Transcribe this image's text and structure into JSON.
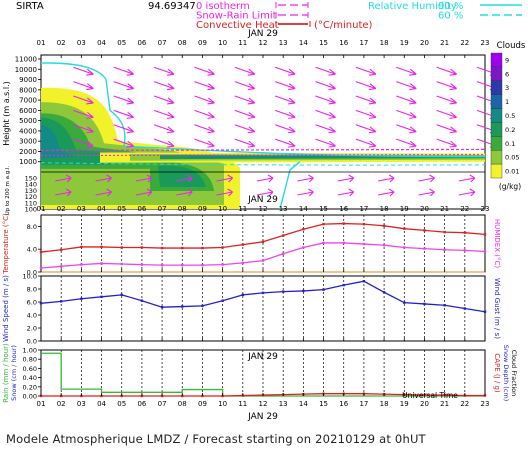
{
  "header": {
    "site": "SIRTA",
    "coords": "94.69347",
    "legend_isotherm": "0 isotherm",
    "legend_snow_rain": "Snow-Rain Limit",
    "legend_convective": "Convective Heat",
    "legend_convective_unit": "(°C/minute)",
    "legend_rh_label": "Relative Humidity",
    "legend_rh_90": "90 %",
    "legend_rh_60": "60 %"
  },
  "hour_labels": [
    "01",
    "02",
    "03",
    "04",
    "05",
    "06",
    "07",
    "08",
    "09",
    "10",
    "11",
    "12",
    "13",
    "14",
    "15",
    "16",
    "17",
    "18",
    "19",
    "20",
    "21",
    "22",
    "23"
  ],
  "date_label": "JAN 29",
  "x_axis_title": "Universal Time",
  "footer": "Modele Atmospherique LMDZ / Forecast starting on 20210129 at 0hUT",
  "colors": {
    "magenta": "#ee22ee",
    "cyan": "#22dddd",
    "red": "#dd2222",
    "blue": "#2222cc",
    "green": "#33bb33",
    "orange": "#e08a20"
  },
  "chart_data": [
    {
      "type": "heatmap",
      "panel": "clouds",
      "ylabel": "Height (m a.s.l.)",
      "ylabel2": "Up to 200 m a.g.l.",
      "y_ticks_upper": [
        11000,
        10000,
        9000,
        8000,
        7000,
        6000,
        5000,
        4000,
        3000,
        2000,
        1000
      ],
      "y_ticks_lower": [
        150,
        140,
        130,
        120,
        110,
        100
      ],
      "colorbar_title": "Clouds",
      "colorbar_unit": "(g/kg)",
      "colorbar_ticks": [
        "9",
        "6",
        "3",
        "1",
        "0.5",
        "0.2",
        "0.1",
        "0.05",
        "0.01"
      ],
      "colorbar_colors": [
        "#a000f0",
        "#7a18c8",
        "#2a3aa8",
        "#1868a8",
        "#128a86",
        "#1a9a5a",
        "#3aaa3a",
        "#8cc83a",
        "#f2f22a"
      ],
      "wind_arrow_direction": "from north-west"
    },
    {
      "type": "line",
      "panel": "temperature",
      "ylabel": "Temperature (°C)",
      "ylabel2": "HUMIDEX (°C)",
      "y_ticks": [
        "8.0",
        "4.0",
        "0.0"
      ],
      "ylim": [
        0,
        10
      ],
      "x": [
        1,
        2,
        3,
        4,
        5,
        6,
        7,
        8,
        9,
        10,
        11,
        12,
        13,
        14,
        15,
        16,
        17,
        18,
        19,
        20,
        21,
        22,
        23
      ],
      "series": [
        {
          "name": "Temperature",
          "color": "#dd2222",
          "values": [
            3.5,
            3.9,
            4.4,
            4.4,
            4.3,
            4.3,
            4.2,
            4.2,
            4.2,
            4.3,
            4.8,
            5.3,
            6.4,
            7.5,
            8.4,
            8.5,
            8.4,
            8.1,
            7.6,
            7.3,
            7.0,
            6.9,
            6.6
          ]
        },
        {
          "name": "HUMIDEX",
          "color": "#ee44ee",
          "values": [
            0.7,
            1.0,
            1.3,
            1.5,
            1.4,
            1.3,
            1.2,
            1.2,
            1.2,
            1.3,
            1.6,
            2.0,
            3.2,
            4.3,
            5.1,
            5.1,
            4.9,
            4.7,
            4.3,
            4.1,
            3.9,
            3.8,
            3.6
          ]
        }
      ],
      "zero_line_color": "#e08a20"
    },
    {
      "type": "line",
      "panel": "wind",
      "ylabel": "Wind Speed (m / s)",
      "ylabel2": "Wind Gust (m / s)",
      "y_ticks": [
        "10.0",
        "8.0",
        "6.0",
        "4.0",
        "2.0",
        "0.0"
      ],
      "ylim": [
        0,
        10
      ],
      "x": [
        1,
        2,
        3,
        4,
        5,
        6,
        7,
        8,
        9,
        10,
        11,
        12,
        13,
        14,
        15,
        16,
        17,
        18,
        19,
        20,
        21,
        22,
        23
      ],
      "series": [
        {
          "name": "Wind Speed",
          "color": "#2222cc",
          "values": [
            5.8,
            6.1,
            6.5,
            6.8,
            7.1,
            6.2,
            5.2,
            5.3,
            5.4,
            6.2,
            7.1,
            7.4,
            7.6,
            7.7,
            7.9,
            8.6,
            9.2,
            7.5,
            5.9,
            5.7,
            5.5,
            5.0,
            4.5
          ]
        }
      ]
    },
    {
      "type": "line",
      "panel": "precipitation",
      "ylabel": "Rain (mm / hour)",
      "ylabel_snow": "Snow (cm / hour)",
      "ylabel2": "CAPE (J / g)",
      "ylabel3": "Snow Depth (cm)",
      "ylabel4": "Cloud Fraction",
      "y_ticks": [
        "1.00",
        "0.80",
        "0.60",
        "0.40",
        "0.20",
        "0.00"
      ],
      "ylim": [
        0,
        1
      ],
      "x": [
        1,
        2,
        3,
        4,
        5,
        6,
        7,
        8,
        9,
        10,
        11,
        12,
        13,
        14,
        15,
        16,
        17,
        18,
        19,
        20,
        21,
        22,
        23
      ],
      "series": [
        {
          "name": "Rain",
          "color": "#33bb33",
          "type": "step",
          "values": [
            0.93,
            0.15,
            0.15,
            0.08,
            0.08,
            0.08,
            0.08,
            0.14,
            0.14,
            0.0,
            0.0,
            0.0,
            0.0,
            0.0,
            0.0,
            0.0,
            0.0,
            0.0,
            0.0,
            0.0,
            0.0,
            0.0,
            0.0
          ]
        },
        {
          "name": "CAPE",
          "color": "#dd2222",
          "values": [
            0.0,
            0.0,
            0.0,
            0.0,
            0.0,
            0.0,
            0.0,
            0.0,
            0.0,
            0.0,
            0.01,
            0.02,
            0.03,
            0.04,
            0.05,
            0.05,
            0.05,
            0.04,
            0.03,
            0.02,
            0.02,
            0.01,
            0.01
          ]
        }
      ]
    }
  ]
}
